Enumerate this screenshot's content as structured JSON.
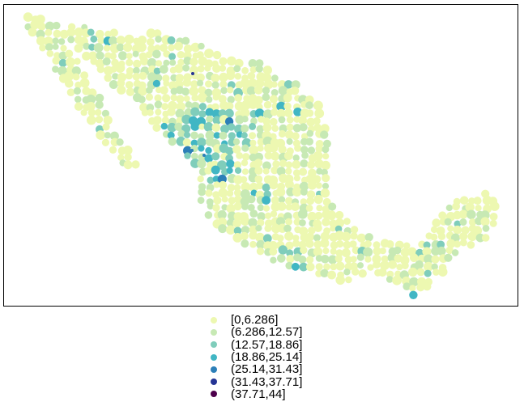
{
  "map": {
    "type": "choropleth-points",
    "region": "Mexico",
    "legend": [
      {
        "label": "[0,6.286]",
        "color": "#edf8b1"
      },
      {
        "label": "(6.286,12.57]",
        "color": "#c7e9b4"
      },
      {
        "label": "(12.57,18.86]",
        "color": "#7fcdbb"
      },
      {
        "label": "(18.86,25.14]",
        "color": "#41b6c4"
      },
      {
        "label": "(25.14,31.43]",
        "color": "#2c7fb8"
      },
      {
        "label": "(31.43,37.71]",
        "color": "#253494"
      },
      {
        "label": "(37.71,44]",
        "color": "#4d004b"
      }
    ]
  }
}
